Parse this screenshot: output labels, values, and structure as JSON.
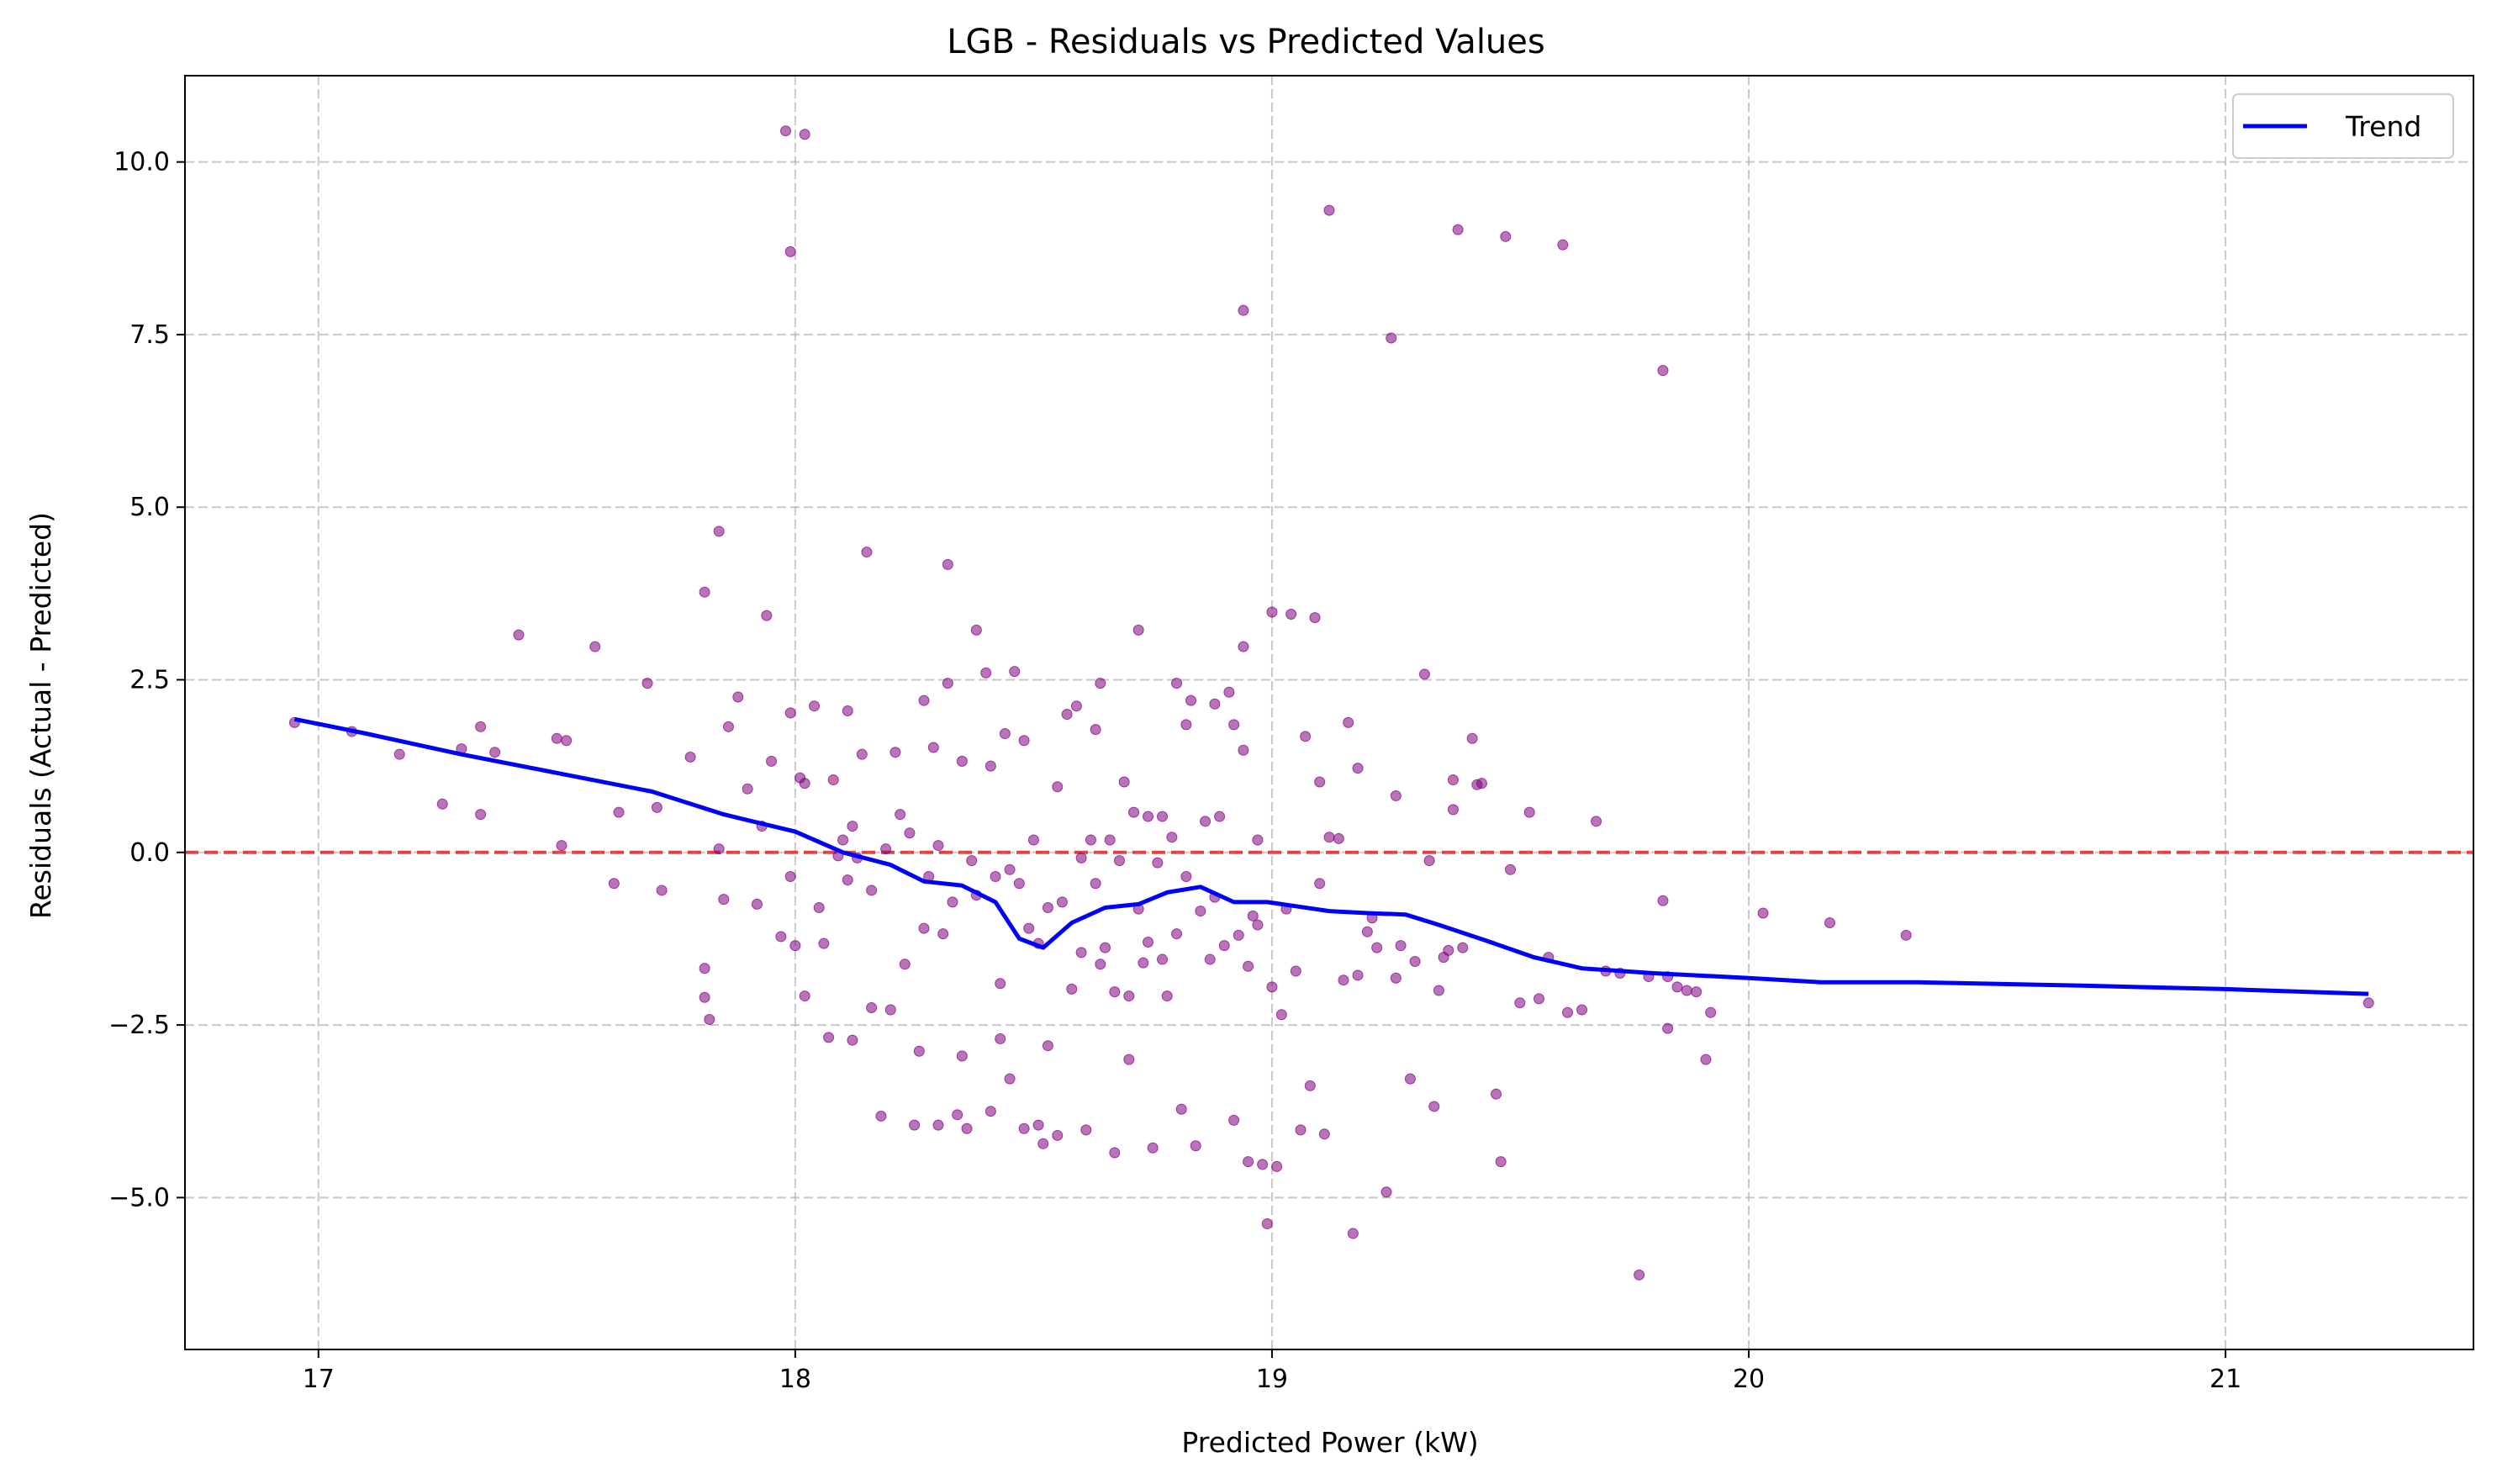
{
  "chart_data": {
    "type": "scatter",
    "title": "LGB - Residuals vs Predicted Values",
    "xlabel": "Predicted Power (kW)",
    "ylabel": "Residuals (Actual - Predicted)",
    "xlim": [
      16.72,
      21.52
    ],
    "ylim": [
      -7.2,
      11.25
    ],
    "x_ticks": [
      17,
      18,
      19,
      20,
      21
    ],
    "x_tick_labels": [
      "17",
      "18",
      "19",
      "20",
      "21"
    ],
    "y_ticks": [
      -5.0,
      -2.5,
      0.0,
      2.5,
      5.0,
      7.5,
      10.0
    ],
    "y_tick_labels": [
      "−5.0",
      "−2.5",
      "0.0",
      "2.5",
      "5.0",
      "7.5",
      "10.0"
    ],
    "grid": true,
    "legend_position": "top-right",
    "reference_line": {
      "y": 0,
      "color": "#e31a1c",
      "style": "dashed"
    },
    "series": [
      {
        "name": "",
        "kind": "scatter",
        "color": "#800080",
        "points": [
          [
            16.95,
            1.88
          ],
          [
            17.07,
            1.75
          ],
          [
            17.17,
            1.42
          ],
          [
            17.26,
            0.7
          ],
          [
            17.3,
            1.5
          ],
          [
            17.34,
            1.82
          ],
          [
            17.34,
            0.55
          ],
          [
            17.37,
            1.45
          ],
          [
            17.42,
            3.15
          ],
          [
            17.5,
            1.65
          ],
          [
            17.51,
            0.1
          ],
          [
            17.52,
            1.62
          ],
          [
            17.58,
            2.98
          ],
          [
            17.62,
            -0.45
          ],
          [
            17.63,
            0.58
          ],
          [
            17.69,
            2.45
          ],
          [
            17.71,
            0.65
          ],
          [
            17.72,
            -0.55
          ],
          [
            17.78,
            1.38
          ],
          [
            17.81,
            3.77
          ],
          [
            17.81,
            -1.68
          ],
          [
            17.81,
            -2.1
          ],
          [
            17.82,
            -2.42
          ],
          [
            17.84,
            4.65
          ],
          [
            17.84,
            0.05
          ],
          [
            17.85,
            -0.68
          ],
          [
            17.86,
            1.82
          ],
          [
            17.88,
            2.25
          ],
          [
            17.9,
            0.92
          ],
          [
            17.92,
            -0.75
          ],
          [
            17.93,
            0.38
          ],
          [
            17.94,
            3.43
          ],
          [
            17.95,
            1.32
          ],
          [
            17.97,
            -1.22
          ],
          [
            17.98,
            10.45
          ],
          [
            18.02,
            10.4
          ],
          [
            17.99,
            8.7
          ],
          [
            17.99,
            -0.35
          ],
          [
            17.99,
            2.02
          ],
          [
            18.0,
            -1.35
          ],
          [
            18.01,
            1.08
          ],
          [
            18.02,
            1.0
          ],
          [
            18.02,
            -2.08
          ],
          [
            18.04,
            2.12
          ],
          [
            18.05,
            -0.8
          ],
          [
            18.06,
            -1.32
          ],
          [
            18.07,
            -2.68
          ],
          [
            18.08,
            1.05
          ],
          [
            18.09,
            -0.05
          ],
          [
            18.1,
            0.18
          ],
          [
            18.11,
            -0.4
          ],
          [
            18.11,
            2.05
          ],
          [
            18.12,
            -2.72
          ],
          [
            18.12,
            0.38
          ],
          [
            18.13,
            -0.08
          ],
          [
            18.14,
            1.42
          ],
          [
            18.15,
            4.35
          ],
          [
            18.16,
            -0.55
          ],
          [
            18.16,
            -2.25
          ],
          [
            18.18,
            -3.82
          ],
          [
            18.19,
            0.05
          ],
          [
            18.2,
            -2.28
          ],
          [
            18.21,
            1.45
          ],
          [
            18.22,
            0.55
          ],
          [
            18.23,
            -1.62
          ],
          [
            18.24,
            0.28
          ],
          [
            18.25,
            -3.95
          ],
          [
            18.26,
            -2.88
          ],
          [
            18.27,
            -1.1
          ],
          [
            18.27,
            2.2
          ],
          [
            18.28,
            -0.35
          ],
          [
            18.29,
            1.52
          ],
          [
            18.3,
            -3.95
          ],
          [
            18.3,
            0.1
          ],
          [
            18.31,
            -1.18
          ],
          [
            18.32,
            2.45
          ],
          [
            18.32,
            4.17
          ],
          [
            18.33,
            -0.72
          ],
          [
            18.34,
            -3.8
          ],
          [
            18.35,
            -2.95
          ],
          [
            18.35,
            1.32
          ],
          [
            18.36,
            -4.0
          ],
          [
            18.37,
            -0.12
          ],
          [
            18.38,
            -0.62
          ],
          [
            18.38,
            3.22
          ],
          [
            18.4,
            2.6
          ],
          [
            18.41,
            1.25
          ],
          [
            18.41,
            -3.75
          ],
          [
            18.42,
            -0.35
          ],
          [
            18.43,
            -2.7
          ],
          [
            18.43,
            -1.9
          ],
          [
            18.44,
            1.72
          ],
          [
            18.45,
            -3.28
          ],
          [
            18.45,
            -0.25
          ],
          [
            18.46,
            2.62
          ],
          [
            18.47,
            -0.45
          ],
          [
            18.48,
            1.62
          ],
          [
            18.48,
            -4.0
          ],
          [
            18.49,
            -1.1
          ],
          [
            18.5,
            0.18
          ],
          [
            18.51,
            -1.32
          ],
          [
            18.51,
            -3.95
          ],
          [
            18.52,
            -4.22
          ],
          [
            18.53,
            -0.8
          ],
          [
            18.53,
            -2.8
          ],
          [
            18.55,
            0.95
          ],
          [
            18.55,
            -4.1
          ],
          [
            18.56,
            -0.72
          ],
          [
            18.57,
            2.0
          ],
          [
            18.58,
            -1.98
          ],
          [
            18.59,
            2.12
          ],
          [
            18.6,
            -0.08
          ],
          [
            18.6,
            -1.45
          ],
          [
            18.61,
            -4.02
          ],
          [
            18.62,
            0.18
          ],
          [
            18.63,
            -0.45
          ],
          [
            18.63,
            1.78
          ],
          [
            18.64,
            -1.62
          ],
          [
            18.64,
            2.45
          ],
          [
            18.65,
            -1.38
          ],
          [
            18.66,
            0.18
          ],
          [
            18.67,
            -2.02
          ],
          [
            18.67,
            -4.35
          ],
          [
            18.68,
            -0.12
          ],
          [
            18.69,
            1.02
          ],
          [
            18.7,
            -3.0
          ],
          [
            18.7,
            -2.08
          ],
          [
            18.71,
            0.58
          ],
          [
            18.72,
            -0.82
          ],
          [
            18.72,
            3.22
          ],
          [
            18.73,
            -1.6
          ],
          [
            18.74,
            -1.3
          ],
          [
            18.74,
            0.52
          ],
          [
            18.75,
            -4.28
          ],
          [
            18.76,
            -0.15
          ],
          [
            18.77,
            -1.55
          ],
          [
            18.77,
            0.52
          ],
          [
            18.78,
            -2.08
          ],
          [
            18.79,
            0.22
          ],
          [
            18.8,
            -1.18
          ],
          [
            18.8,
            2.45
          ],
          [
            18.81,
            -3.72
          ],
          [
            18.82,
            1.85
          ],
          [
            18.82,
            -0.35
          ],
          [
            18.83,
            2.2
          ],
          [
            18.84,
            -4.25
          ],
          [
            18.85,
            -0.85
          ],
          [
            18.86,
            0.45
          ],
          [
            18.87,
            -1.55
          ],
          [
            18.88,
            -0.65
          ],
          [
            18.88,
            2.15
          ],
          [
            18.89,
            0.52
          ],
          [
            18.9,
            -1.35
          ],
          [
            18.91,
            2.32
          ],
          [
            18.92,
            1.85
          ],
          [
            18.92,
            -3.88
          ],
          [
            18.93,
            -1.2
          ],
          [
            18.94,
            1.48
          ],
          [
            18.94,
            2.98
          ],
          [
            18.95,
            -4.48
          ],
          [
            18.95,
            -1.65
          ],
          [
            18.96,
            -0.92
          ],
          [
            18.97,
            -1.05
          ],
          [
            18.97,
            0.18
          ],
          [
            18.94,
            7.85
          ],
          [
            18.98,
            -4.52
          ],
          [
            18.99,
            -5.38
          ],
          [
            19.0,
            -1.95
          ],
          [
            19.0,
            3.48
          ],
          [
            19.01,
            -4.55
          ],
          [
            19.02,
            -2.35
          ],
          [
            19.03,
            -0.82
          ],
          [
            19.04,
            3.45
          ],
          [
            19.05,
            -1.72
          ],
          [
            19.06,
            -4.02
          ],
          [
            19.07,
            1.68
          ],
          [
            19.08,
            -3.38
          ],
          [
            19.09,
            3.4
          ],
          [
            19.1,
            1.02
          ],
          [
            19.1,
            -0.45
          ],
          [
            19.11,
            -4.08
          ],
          [
            19.12,
            9.3
          ],
          [
            19.12,
            0.22
          ],
          [
            19.14,
            0.2
          ],
          [
            19.15,
            -1.85
          ],
          [
            19.16,
            1.88
          ],
          [
            19.17,
            -5.52
          ],
          [
            19.18,
            -1.78
          ],
          [
            19.18,
            1.22
          ],
          [
            19.2,
            -1.15
          ],
          [
            19.21,
            -0.95
          ],
          [
            19.22,
            -1.38
          ],
          [
            19.24,
            -4.92
          ],
          [
            19.25,
            7.45
          ],
          [
            19.26,
            0.82
          ],
          [
            19.26,
            -1.82
          ],
          [
            19.27,
            -1.35
          ],
          [
            19.29,
            -3.28
          ],
          [
            19.3,
            -1.58
          ],
          [
            19.32,
            2.58
          ],
          [
            19.33,
            -0.12
          ],
          [
            19.34,
            -3.68
          ],
          [
            19.35,
            -2.0
          ],
          [
            19.36,
            -1.52
          ],
          [
            19.37,
            -1.42
          ],
          [
            19.38,
            1.05
          ],
          [
            19.38,
            0.62
          ],
          [
            19.39,
            9.02
          ],
          [
            19.4,
            -1.38
          ],
          [
            19.42,
            1.65
          ],
          [
            19.43,
            0.98
          ],
          [
            19.44,
            1.0
          ],
          [
            19.47,
            -3.5
          ],
          [
            19.48,
            -4.48
          ],
          [
            19.49,
            8.92
          ],
          [
            19.5,
            -0.25
          ],
          [
            19.52,
            -2.18
          ],
          [
            19.54,
            0.58
          ],
          [
            19.56,
            -2.12
          ],
          [
            19.58,
            -1.52
          ],
          [
            19.61,
            8.8
          ],
          [
            19.62,
            -2.32
          ],
          [
            19.65,
            -2.28
          ],
          [
            19.68,
            0.45
          ],
          [
            19.7,
            -1.72
          ],
          [
            19.73,
            -1.75
          ],
          [
            19.77,
            -6.12
          ],
          [
            19.79,
            -1.8
          ],
          [
            19.82,
            -0.7
          ],
          [
            19.82,
            6.98
          ],
          [
            19.83,
            -2.55
          ],
          [
            19.83,
            -1.8
          ],
          [
            19.85,
            -1.95
          ],
          [
            19.87,
            -2.0
          ],
          [
            19.89,
            -2.02
          ],
          [
            19.91,
            -3.0
          ],
          [
            19.92,
            -2.32
          ],
          [
            20.03,
            -0.88
          ],
          [
            20.17,
            -1.02
          ],
          [
            20.33,
            -1.2
          ],
          [
            21.3,
            -2.18
          ]
        ]
      },
      {
        "name": "Trend",
        "kind": "line",
        "color": "#0000ff",
        "points": [
          [
            16.95,
            1.93
          ],
          [
            17.1,
            1.72
          ],
          [
            17.3,
            1.42
          ],
          [
            17.5,
            1.15
          ],
          [
            17.7,
            0.88
          ],
          [
            17.85,
            0.55
          ],
          [
            18.0,
            0.3
          ],
          [
            18.1,
            0.0
          ],
          [
            18.2,
            -0.18
          ],
          [
            18.27,
            -0.42
          ],
          [
            18.35,
            -0.48
          ],
          [
            18.42,
            -0.72
          ],
          [
            18.47,
            -1.25
          ],
          [
            18.52,
            -1.38
          ],
          [
            18.58,
            -1.02
          ],
          [
            18.65,
            -0.8
          ],
          [
            18.72,
            -0.75
          ],
          [
            18.78,
            -0.58
          ],
          [
            18.85,
            -0.5
          ],
          [
            18.92,
            -0.72
          ],
          [
            18.99,
            -0.72
          ],
          [
            19.05,
            -0.78
          ],
          [
            19.12,
            -0.85
          ],
          [
            19.2,
            -0.88
          ],
          [
            19.28,
            -0.9
          ],
          [
            19.35,
            -1.05
          ],
          [
            19.45,
            -1.28
          ],
          [
            19.55,
            -1.52
          ],
          [
            19.65,
            -1.68
          ],
          [
            19.8,
            -1.75
          ],
          [
            20.0,
            -1.82
          ],
          [
            20.15,
            -1.88
          ],
          [
            20.35,
            -1.88
          ],
          [
            20.7,
            -1.93
          ],
          [
            21.0,
            -1.98
          ],
          [
            21.3,
            -2.05
          ]
        ]
      }
    ]
  }
}
